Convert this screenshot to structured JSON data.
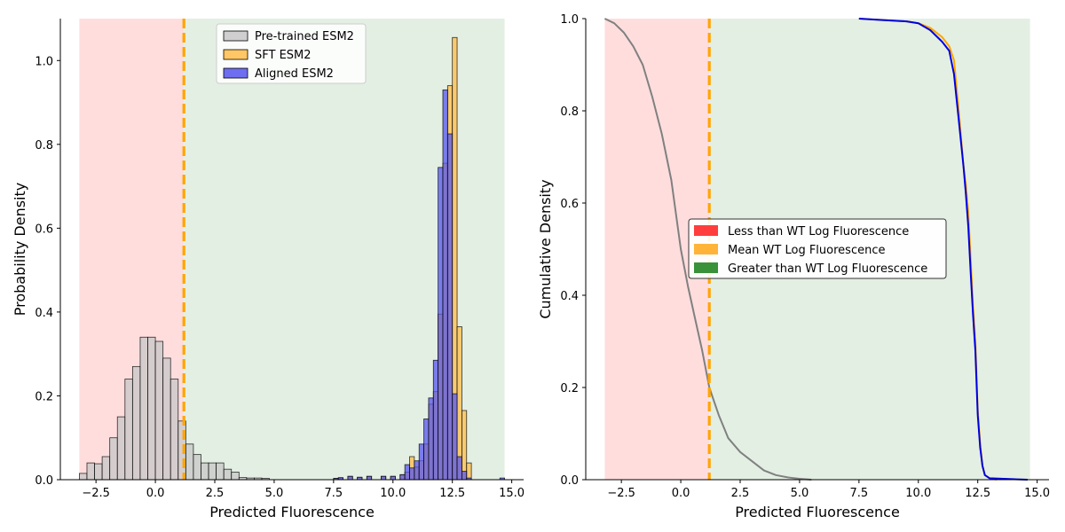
{
  "chart_data": [
    {
      "type": "histogram",
      "xlabel": "Predicted Fluorescence",
      "ylabel": "Probability Density",
      "xlim": [
        -4.0,
        15.5
      ],
      "ylim": [
        0,
        1.1
      ],
      "xticks": [
        -2.5,
        0.0,
        2.5,
        5.0,
        7.5,
        10.0,
        12.5,
        15.0
      ],
      "xtick_labels": [
        "−2.5",
        "0.0",
        "2.5",
        "5.0",
        "7.5",
        "10.0",
        "12.5",
        "15.0"
      ],
      "yticks": [
        0.0,
        0.2,
        0.4,
        0.6,
        0.8,
        1.0
      ],
      "ytick_labels": [
        "0.0",
        "0.2",
        "0.4",
        "0.6",
        "0.8",
        "1.0"
      ],
      "wt_mean": 1.2,
      "shaded_regions": [
        {
          "name": "Less than WT Log Fluorescence",
          "x0": -3.2,
          "x1": 1.2,
          "color": "#ffdddd"
        },
        {
          "name": "Greater than WT Log Fluorescence",
          "x0": 1.2,
          "x1": 14.7,
          "color": "#e3efe3"
        }
      ],
      "legend": {
        "position": "top-center",
        "entries": [
          "Pre-trained ESM2",
          "SFT ESM2",
          "Aligned ESM2"
        ]
      },
      "series": [
        {
          "name": "Pre-trained ESM2",
          "color": "#c7c7c7",
          "bin_start": -3.2,
          "bin_width": 0.32,
          "values": [
            0.015,
            0.04,
            0.038,
            0.055,
            0.1,
            0.15,
            0.24,
            0.27,
            0.34,
            0.34,
            0.33,
            0.29,
            0.24,
            0.14,
            0.085,
            0.06,
            0.04,
            0.04,
            0.04,
            0.025,
            0.018,
            0.005,
            0.004,
            0.004,
            0.003
          ]
        },
        {
          "name": "SFT ESM2",
          "color": "#ffbd4a",
          "bin_start": 7.5,
          "bin_width": 0.2,
          "values": [
            0.003,
            0.004,
            0.0,
            0.008,
            0.0,
            0.005,
            0.0,
            0.008,
            0.0,
            0.0,
            0.008,
            0.0,
            0.008,
            0.0,
            0.012,
            0.018,
            0.055,
            0.03,
            0.045,
            0.085,
            0.18,
            0.21,
            0.395,
            0.755,
            0.94,
            1.055,
            0.365,
            0.165,
            0.04,
            0.0,
            0.0,
            0.0,
            0.0,
            0.0,
            0.0,
            0.0
          ]
        },
        {
          "name": "Aligned ESM2",
          "color": "#5555ee",
          "bin_start": 7.5,
          "bin_width": 0.2,
          "values": [
            0.003,
            0.005,
            0.0,
            0.008,
            0.0,
            0.006,
            0.0,
            0.008,
            0.0,
            0.0,
            0.008,
            0.0,
            0.008,
            0.0,
            0.012,
            0.036,
            0.028,
            0.045,
            0.085,
            0.145,
            0.195,
            0.285,
            0.745,
            0.93,
            0.825,
            0.205,
            0.055,
            0.02,
            0.004,
            0.0,
            0.0,
            0.0,
            0.0,
            0.0,
            0.0,
            0.004
          ]
        }
      ]
    },
    {
      "type": "line",
      "xlabel": "Predicted Fluorescence",
      "ylabel": "Cumulative Density",
      "xlim": [
        -4.0,
        15.5
      ],
      "ylim": [
        0,
        1.0
      ],
      "xticks": [
        -2.5,
        0.0,
        2.5,
        5.0,
        7.5,
        10.0,
        12.5,
        15.0
      ],
      "xtick_labels": [
        "−2.5",
        "0.0",
        "2.5",
        "5.0",
        "7.5",
        "10.0",
        "12.5",
        "15.0"
      ],
      "yticks": [
        0.0,
        0.2,
        0.4,
        0.6,
        0.8,
        1.0
      ],
      "ytick_labels": [
        "0.0",
        "0.2",
        "0.4",
        "0.6",
        "0.8",
        "1.0"
      ],
      "wt_mean": 1.2,
      "shaded_regions": [
        {
          "x0": -3.2,
          "x1": 1.2,
          "color": "#ffdddd"
        },
        {
          "x0": 1.2,
          "x1": 14.7,
          "color": "#e3efe3"
        }
      ],
      "legend": {
        "position": "center",
        "entries": [
          {
            "label": "Less than WT Log Fluorescence",
            "color": "#ff3333"
          },
          {
            "label": "Mean WT Log Fluorescence",
            "color": "#ffb02e"
          },
          {
            "label": "Greater than WT Log Fluorescence",
            "color": "#2e8b2e"
          }
        ]
      },
      "series": [
        {
          "name": "Pre-trained ESM2",
          "color": "#808080",
          "x": [
            -3.2,
            -2.8,
            -2.4,
            -2.0,
            -1.6,
            -1.2,
            -0.8,
            -0.4,
            0.0,
            0.3,
            0.6,
            0.9,
            1.2,
            1.6,
            2.0,
            2.5,
            3.0,
            3.5,
            4.0,
            4.5,
            5.0,
            5.5
          ],
          "y": [
            1.0,
            0.99,
            0.97,
            0.94,
            0.9,
            0.83,
            0.75,
            0.65,
            0.5,
            0.42,
            0.35,
            0.28,
            0.2,
            0.14,
            0.09,
            0.06,
            0.04,
            0.02,
            0.01,
            0.005,
            0.002,
            0.0
          ]
        },
        {
          "name": "SFT ESM2",
          "color": "#ffa500",
          "x": [
            7.5,
            8.5,
            9.5,
            10.0,
            10.5,
            11.0,
            11.3,
            11.5,
            11.7,
            11.9,
            12.0,
            12.1,
            12.2,
            12.3,
            12.4,
            12.5,
            12.6,
            12.7,
            12.8,
            13.0,
            13.3
          ],
          "y": [
            1.0,
            0.997,
            0.994,
            0.99,
            0.98,
            0.96,
            0.94,
            0.91,
            0.8,
            0.68,
            0.64,
            0.58,
            0.48,
            0.38,
            0.3,
            0.15,
            0.08,
            0.03,
            0.01,
            0.003,
            0.0
          ]
        },
        {
          "name": "Aligned ESM2",
          "color": "#0000dd",
          "x": [
            7.5,
            8.5,
            9.5,
            10.0,
            10.5,
            11.0,
            11.3,
            11.5,
            11.7,
            11.9,
            12.0,
            12.1,
            12.2,
            12.3,
            12.4,
            12.5,
            12.6,
            12.7,
            12.8,
            13.0,
            14.6
          ],
          "y": [
            1.0,
            0.997,
            0.994,
            0.99,
            0.975,
            0.95,
            0.93,
            0.88,
            0.78,
            0.68,
            0.62,
            0.55,
            0.45,
            0.36,
            0.28,
            0.14,
            0.07,
            0.03,
            0.01,
            0.003,
            0.0
          ]
        }
      ]
    }
  ]
}
